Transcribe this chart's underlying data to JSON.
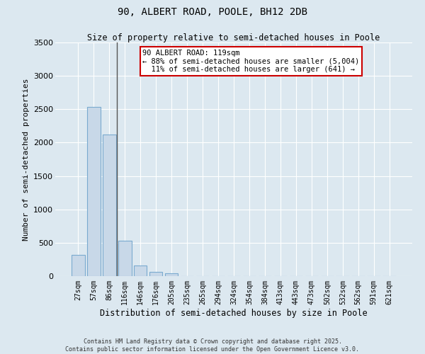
{
  "title_line1": "90, ALBERT ROAD, POOLE, BH12 2DB",
  "title_line2": "Size of property relative to semi-detached houses in Poole",
  "xlabel": "Distribution of semi-detached houses by size in Poole",
  "ylabel": "Number of semi-detached properties",
  "categories": [
    "27sqm",
    "57sqm",
    "86sqm",
    "116sqm",
    "146sqm",
    "176sqm",
    "205sqm",
    "235sqm",
    "265sqm",
    "294sqm",
    "324sqm",
    "354sqm",
    "384sqm",
    "413sqm",
    "443sqm",
    "473sqm",
    "502sqm",
    "532sqm",
    "562sqm",
    "591sqm",
    "621sqm"
  ],
  "values": [
    320,
    2530,
    2120,
    530,
    155,
    65,
    40,
    0,
    0,
    0,
    0,
    0,
    0,
    0,
    0,
    0,
    0,
    0,
    0,
    0,
    0
  ],
  "bar_color": "#c8d8e8",
  "bar_edge_color": "#7aaacf",
  "ylim": [
    0,
    3500
  ],
  "yticks": [
    0,
    500,
    1000,
    1500,
    2000,
    2500,
    3000,
    3500
  ],
  "annotation_text": "90 ALBERT ROAD: 119sqm\n← 88% of semi-detached houses are smaller (5,004)\n  11% of semi-detached houses are larger (641) →",
  "annotation_box_facecolor": "#ffffff",
  "annotation_box_edgecolor": "#cc0000",
  "background_color": "#dce8f0",
  "grid_color": "#ffffff",
  "vline_x_index": 2.5,
  "footer_line1": "Contains HM Land Registry data © Crown copyright and database right 2025.",
  "footer_line2": "Contains public sector information licensed under the Open Government Licence v3.0."
}
